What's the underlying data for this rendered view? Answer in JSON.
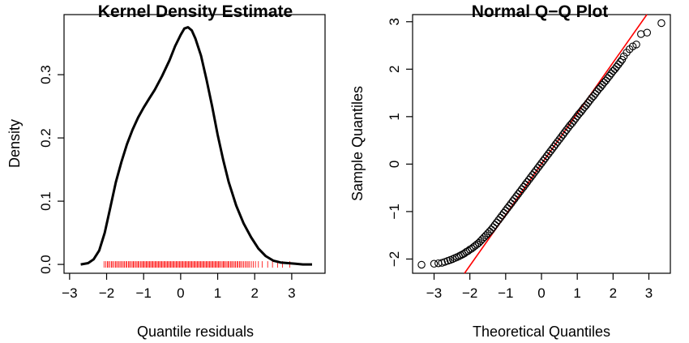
{
  "chart_data": [
    {
      "type": "line",
      "title": "Kernel Density Estimate",
      "xlabel": "Quantile residuals",
      "ylabel": "Density",
      "xlim": [
        -3.15,
        3.9
      ],
      "ylim": [
        -0.014,
        0.395
      ],
      "x_ticks": [
        -3,
        -2,
        -1,
        0,
        1,
        2,
        3
      ],
      "x_tick_labels": [
        "−3",
        "−2",
        "−1",
        "0",
        "1",
        "2",
        "3"
      ],
      "y_ticks": [
        0.0,
        0.1,
        0.2,
        0.3
      ],
      "y_tick_labels": [
        "0.0",
        "0.1",
        "0.2",
        "0.3"
      ],
      "curve_color": "#000000",
      "rug_color": "#ff0000",
      "series": [
        {
          "x": [
            -2.7,
            -2.5,
            -2.35,
            -2.2,
            -2.05,
            -1.9,
            -1.75,
            -1.6,
            -1.45,
            -1.3,
            -1.15,
            -1.0,
            -0.85,
            -0.7,
            -0.5,
            -0.3,
            -0.15,
            0.0,
            0.1,
            0.2,
            0.3,
            0.4,
            0.55,
            0.7,
            0.85,
            1.0,
            1.15,
            1.3,
            1.5,
            1.7,
            1.9,
            2.1,
            2.3,
            2.5,
            2.7,
            2.9,
            3.1,
            3.3,
            3.55
          ],
          "y": [
            0.0,
            0.002,
            0.008,
            0.022,
            0.05,
            0.09,
            0.13,
            0.162,
            0.19,
            0.213,
            0.232,
            0.248,
            0.262,
            0.276,
            0.298,
            0.323,
            0.345,
            0.363,
            0.373,
            0.375,
            0.37,
            0.357,
            0.33,
            0.292,
            0.25,
            0.205,
            0.165,
            0.13,
            0.093,
            0.065,
            0.043,
            0.025,
            0.013,
            0.006,
            0.003,
            0.002,
            0.001,
            0.0,
            0.0
          ]
        }
      ],
      "rug": [
        -2.07,
        -2.02,
        -1.98,
        -1.95,
        -1.91,
        -1.87,
        -1.84,
        -1.8,
        -1.76,
        -1.73,
        -1.69,
        -1.66,
        -1.62,
        -1.59,
        -1.55,
        -1.52,
        -1.48,
        -1.45,
        -1.41,
        -1.38,
        -1.35,
        -1.31,
        -1.28,
        -1.25,
        -1.21,
        -1.18,
        -1.15,
        -1.12,
        -1.08,
        -1.05,
        -1.02,
        -0.99,
        -0.96,
        -0.93,
        -0.9,
        -0.87,
        -0.84,
        -0.81,
        -0.78,
        -0.75,
        -0.72,
        -0.69,
        -0.66,
        -0.63,
        -0.6,
        -0.57,
        -0.54,
        -0.51,
        -0.48,
        -0.45,
        -0.42,
        -0.39,
        -0.36,
        -0.33,
        -0.3,
        -0.27,
        -0.24,
        -0.21,
        -0.18,
        -0.15,
        -0.12,
        -0.09,
        -0.06,
        -0.03,
        0.0,
        0.03,
        0.06,
        0.09,
        0.12,
        0.15,
        0.18,
        0.21,
        0.24,
        0.27,
        0.3,
        0.33,
        0.36,
        0.39,
        0.42,
        0.45,
        0.48,
        0.51,
        0.54,
        0.57,
        0.6,
        0.63,
        0.66,
        0.69,
        0.72,
        0.75,
        0.78,
        0.81,
        0.84,
        0.87,
        0.9,
        0.93,
        0.96,
        0.99,
        1.02,
        1.05,
        1.08,
        1.12,
        1.15,
        1.18,
        1.21,
        1.25,
        1.28,
        1.31,
        1.35,
        1.38,
        1.41,
        1.45,
        1.48,
        1.52,
        1.55,
        1.59,
        1.62,
        1.66,
        1.7,
        1.74,
        1.78,
        1.82,
        1.86,
        1.91,
        1.96,
        2.02,
        2.1,
        2.2,
        2.35,
        2.48,
        2.62,
        2.75,
        2.95
      ]
    },
    {
      "type": "scatter",
      "title": "Normal Q−Q Plot",
      "xlabel": "Theoretical Quantiles",
      "ylabel": "Sample Quantiles",
      "xlim": [
        -3.6,
        3.6
      ],
      "ylim": [
        -2.3,
        3.15
      ],
      "x_ticks": [
        -3,
        -2,
        -1,
        0,
        1,
        2,
        3
      ],
      "x_tick_labels": [
        "−3",
        "−2",
        "−1",
        "0",
        "1",
        "2",
        "3"
      ],
      "y_ticks": [
        -2,
        -1,
        0,
        1,
        2,
        3
      ],
      "y_tick_labels": [
        "−2",
        "−1",
        "0",
        "1",
        "2",
        "3"
      ],
      "point_color": "#000000",
      "reference_line": {
        "intercept": 0.0,
        "slope": 1.07,
        "color": "#ff0000"
      },
      "points": {
        "x": [
          -3.35,
          -3.0,
          -2.88,
          -2.78,
          -2.7,
          -2.62,
          -2.55,
          -2.48,
          -2.42,
          -2.36,
          -2.3,
          -2.25,
          -2.2,
          -2.15,
          -2.1,
          -2.05,
          -2.0,
          -1.95,
          -1.9,
          -1.85,
          -1.8,
          -1.75,
          -1.7,
          -1.65,
          -1.6,
          -1.55,
          -1.5,
          -1.45,
          -1.4,
          -1.35,
          -1.3,
          -1.25,
          -1.2,
          -1.15,
          -1.1,
          -1.05,
          -1.0,
          -0.95,
          -0.9,
          -0.85,
          -0.8,
          -0.75,
          -0.7,
          -0.65,
          -0.6,
          -0.55,
          -0.5,
          -0.45,
          -0.4,
          -0.35,
          -0.3,
          -0.25,
          -0.2,
          -0.15,
          -0.1,
          -0.05,
          0.0,
          0.05,
          0.1,
          0.15,
          0.2,
          0.25,
          0.3,
          0.35,
          0.4,
          0.45,
          0.5,
          0.55,
          0.6,
          0.65,
          0.7,
          0.75,
          0.8,
          0.85,
          0.9,
          0.95,
          1.0,
          1.05,
          1.1,
          1.15,
          1.2,
          1.25,
          1.3,
          1.35,
          1.4,
          1.45,
          1.5,
          1.55,
          1.6,
          1.65,
          1.7,
          1.75,
          1.8,
          1.85,
          1.9,
          1.95,
          2.0,
          2.05,
          2.1,
          2.15,
          2.2,
          2.25,
          2.3,
          2.38,
          2.46,
          2.55,
          2.65,
          2.78,
          2.95,
          3.35
        ],
        "y": [
          -2.12,
          -2.1,
          -2.09,
          -2.08,
          -2.06,
          -2.04,
          -2.02,
          -2.0,
          -1.98,
          -1.96,
          -1.94,
          -1.92,
          -1.9,
          -1.88,
          -1.85,
          -1.83,
          -1.8,
          -1.78,
          -1.75,
          -1.72,
          -1.69,
          -1.66,
          -1.62,
          -1.58,
          -1.54,
          -1.5,
          -1.46,
          -1.42,
          -1.38,
          -1.33,
          -1.28,
          -1.23,
          -1.18,
          -1.13,
          -1.08,
          -1.03,
          -0.98,
          -0.93,
          -0.88,
          -0.83,
          -0.78,
          -0.73,
          -0.68,
          -0.63,
          -0.58,
          -0.53,
          -0.48,
          -0.43,
          -0.38,
          -0.33,
          -0.28,
          -0.23,
          -0.18,
          -0.13,
          -0.08,
          -0.03,
          0.02,
          0.07,
          0.12,
          0.17,
          0.22,
          0.27,
          0.32,
          0.37,
          0.42,
          0.47,
          0.52,
          0.57,
          0.62,
          0.67,
          0.72,
          0.77,
          0.82,
          0.86,
          0.91,
          0.96,
          1.01,
          1.06,
          1.1,
          1.15,
          1.2,
          1.24,
          1.29,
          1.34,
          1.39,
          1.43,
          1.48,
          1.53,
          1.58,
          1.62,
          1.67,
          1.72,
          1.76,
          1.81,
          1.86,
          1.91,
          1.96,
          2.0,
          2.05,
          2.1,
          2.15,
          2.2,
          2.27,
          2.35,
          2.42,
          2.48,
          2.52,
          2.74,
          2.77,
          2.97
        ]
      }
    }
  ]
}
